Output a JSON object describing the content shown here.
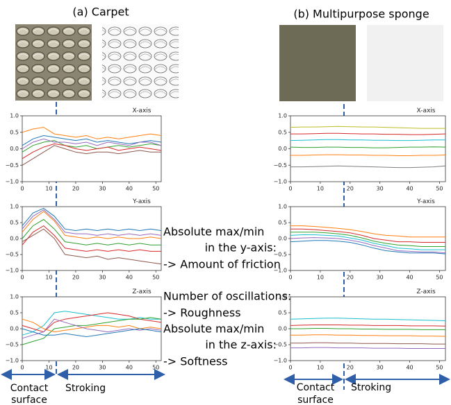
{
  "chart_data": [
    {
      "type": "line",
      "title": "X-axis",
      "x": [
        0,
        4,
        8,
        12,
        16,
        20,
        24,
        28,
        32,
        36,
        40,
        44,
        48,
        52
      ],
      "xlim": [
        0,
        52
      ],
      "xticks": [
        0,
        10,
        20,
        30,
        40,
        50
      ],
      "ylim": [
        -1,
        1
      ],
      "yticks": [
        {
          "value": 1,
          "label": "1.0"
        },
        {
          "value": 0.5,
          "label": "0.5"
        },
        {
          "value": 0,
          "label": "0.0"
        },
        {
          "value": -0.5,
          "label": "−0.5"
        },
        {
          "value": -1,
          "label": "−1.0"
        }
      ],
      "series": [
        {
          "color": "#1f77b4",
          "values": [
            0.1,
            0.3,
            0.4,
            0.35,
            0.3,
            0.25,
            0.3,
            0.2,
            0.25,
            0.2,
            0.15,
            0.2,
            0.25,
            0.2
          ]
        },
        {
          "color": "#ff7f0e",
          "values": [
            0.5,
            0.6,
            0.65,
            0.45,
            0.4,
            0.35,
            0.4,
            0.3,
            0.35,
            0.3,
            0.35,
            0.4,
            0.45,
            0.4
          ]
        },
        {
          "color": "#2ca02c",
          "values": [
            -0.1,
            0.1,
            0.2,
            0.25,
            0.1,
            0.05,
            0.1,
            0.0,
            0.05,
            0.1,
            0.05,
            0.1,
            0.15,
            0.1
          ]
        },
        {
          "color": "#d62728",
          "values": [
            -0.3,
            -0.1,
            0.05,
            0.15,
            0.1,
            0.0,
            -0.05,
            0.0,
            0.05,
            -0.05,
            0.0,
            0.05,
            0.0,
            -0.05
          ]
        },
        {
          "color": "#9467bd",
          "values": [
            0.0,
            0.2,
            0.3,
            0.2,
            0.2,
            0.15,
            0.2,
            0.1,
            0.2,
            0.15,
            0.1,
            0.2,
            0.2,
            0.1
          ]
        },
        {
          "color": "#8c564b",
          "values": [
            -0.5,
            -0.3,
            -0.1,
            0.1,
            0.0,
            -0.1,
            -0.15,
            -0.1,
            -0.1,
            -0.15,
            -0.1,
            -0.05,
            -0.1,
            -0.1
          ]
        }
      ]
    },
    {
      "type": "line",
      "title": "Y-axis",
      "x": [
        0,
        4,
        8,
        12,
        16,
        20,
        24,
        28,
        32,
        36,
        40,
        44,
        48,
        52
      ],
      "xlim": [
        0,
        52
      ],
      "xticks": [
        0,
        10,
        20,
        30,
        40,
        50
      ],
      "ylim": [
        -1,
        1
      ],
      "yticks": [
        {
          "value": 1,
          "label": "1.0"
        },
        {
          "value": 0.5,
          "label": "0.5"
        },
        {
          "value": 0,
          "label": "0.0"
        },
        {
          "value": -0.5,
          "label": "−0.5"
        },
        {
          "value": -1,
          "label": "−1.0"
        }
      ],
      "series": [
        {
          "color": "#1f77b4",
          "values": [
            0.4,
            0.8,
            0.95,
            0.7,
            0.3,
            0.25,
            0.3,
            0.25,
            0.3,
            0.25,
            0.3,
            0.25,
            0.3,
            0.25
          ]
        },
        {
          "color": "#ff7f0e",
          "values": [
            0.2,
            0.6,
            0.85,
            0.55,
            0.1,
            0.05,
            0.0,
            0.05,
            0.0,
            0.05,
            0.0,
            0.0,
            0.05,
            0.0
          ]
        },
        {
          "color": "#2ca02c",
          "values": [
            0.0,
            0.4,
            0.6,
            0.3,
            -0.1,
            -0.15,
            -0.2,
            -0.15,
            -0.2,
            -0.15,
            -0.2,
            -0.15,
            -0.2,
            -0.2
          ]
        },
        {
          "color": "#d62728",
          "values": [
            -0.2,
            0.2,
            0.4,
            0.1,
            -0.3,
            -0.35,
            -0.4,
            -0.35,
            -0.4,
            -0.35,
            -0.4,
            -0.35,
            -0.4,
            -0.4
          ]
        },
        {
          "color": "#9467bd",
          "values": [
            0.3,
            0.7,
            0.9,
            0.6,
            0.2,
            0.15,
            0.15,
            0.1,
            0.15,
            0.1,
            0.15,
            0.1,
            0.15,
            0.1
          ]
        },
        {
          "color": "#8c564b",
          "values": [
            -0.1,
            0.1,
            0.3,
            0.0,
            -0.5,
            -0.55,
            -0.6,
            -0.55,
            -0.65,
            -0.6,
            -0.65,
            -0.7,
            -0.75,
            -0.8
          ]
        }
      ]
    },
    {
      "type": "line",
      "title": "Z-axis",
      "x": [
        0,
        4,
        8,
        12,
        16,
        20,
        24,
        28,
        32,
        36,
        40,
        44,
        48,
        52
      ],
      "xlim": [
        0,
        52
      ],
      "xticks": [
        0,
        10,
        20,
        30,
        40,
        50
      ],
      "ylim": [
        -1,
        1
      ],
      "yticks": [
        {
          "value": 1,
          "label": "1.0"
        },
        {
          "value": 0.5,
          "label": "0.5"
        },
        {
          "value": 0,
          "label": "0.0"
        },
        {
          "value": -0.5,
          "label": "−0.5"
        },
        {
          "value": -1,
          "label": "−1.0"
        }
      ],
      "series": [
        {
          "color": "#17becf",
          "values": [
            -0.2,
            -0.1,
            0.1,
            0.5,
            0.55,
            0.5,
            0.45,
            0.4,
            0.35,
            0.3,
            0.3,
            0.35,
            0.3,
            0.3
          ]
        },
        {
          "color": "#d62728",
          "values": [
            0.1,
            0.0,
            -0.1,
            0.2,
            0.3,
            0.35,
            0.4,
            0.45,
            0.5,
            0.45,
            0.4,
            0.3,
            0.25,
            0.2
          ]
        },
        {
          "color": "#2ca02c",
          "values": [
            -0.5,
            -0.4,
            -0.3,
            0.0,
            0.05,
            0.1,
            0.1,
            0.15,
            0.2,
            0.25,
            0.3,
            0.3,
            0.35,
            0.3
          ]
        },
        {
          "color": "#ff7f0e",
          "values": [
            0.3,
            0.2,
            0.0,
            -0.1,
            -0.05,
            0.0,
            0.05,
            0.1,
            0.1,
            0.05,
            0.1,
            0.0,
            0.05,
            0.0
          ]
        },
        {
          "color": "#9467bd",
          "values": [
            -0.3,
            -0.2,
            -0.1,
            0.3,
            0.2,
            0.1,
            0.0,
            -0.05,
            -0.1,
            -0.05,
            0.0,
            -0.05,
            0.0,
            -0.05
          ]
        },
        {
          "color": "#1f77b4",
          "values": [
            0.0,
            -0.1,
            -0.2,
            -0.2,
            -0.15,
            -0.2,
            -0.25,
            -0.2,
            -0.15,
            -0.1,
            -0.05,
            0.0,
            -0.05,
            -0.1
          ]
        }
      ]
    },
    {
      "type": "line",
      "title": "X-axis",
      "x": [
        0,
        4,
        8,
        12,
        16,
        20,
        24,
        28,
        32,
        36,
        40,
        44,
        48,
        52
      ],
      "xlim": [
        0,
        52
      ],
      "xticks": [
        0,
        10,
        20,
        30,
        40,
        50
      ],
      "ylim": [
        -1,
        1
      ],
      "yticks": [
        {
          "value": 1,
          "label": "1.0"
        },
        {
          "value": 0.5,
          "label": "0.5"
        },
        {
          "value": 0,
          "label": "0.0"
        },
        {
          "value": -0.5,
          "label": "−0.5"
        },
        {
          "value": -1,
          "label": "−1.0"
        }
      ],
      "series": [
        {
          "color": "#bcbd22",
          "values": [
            0.65,
            0.66,
            0.66,
            0.67,
            0.68,
            0.67,
            0.66,
            0.66,
            0.65,
            0.64,
            0.63,
            0.62,
            0.62,
            0.62
          ]
        },
        {
          "color": "#d62728",
          "values": [
            0.45,
            0.45,
            0.46,
            0.47,
            0.47,
            0.46,
            0.45,
            0.45,
            0.44,
            0.44,
            0.43,
            0.43,
            0.44,
            0.45
          ]
        },
        {
          "color": "#17becf",
          "values": [
            0.25,
            0.26,
            0.27,
            0.28,
            0.28,
            0.27,
            0.27,
            0.26,
            0.26,
            0.25,
            0.25,
            0.26,
            0.27,
            0.27
          ]
        },
        {
          "color": "#2ca02c",
          "values": [
            0.05,
            0.04,
            0.04,
            0.05,
            0.05,
            0.04,
            0.04,
            0.03,
            0.03,
            0.04,
            0.05,
            0.05,
            0.06,
            0.05
          ]
        },
        {
          "color": "#ff7f0e",
          "values": [
            -0.2,
            -0.2,
            -0.19,
            -0.18,
            -0.18,
            -0.19,
            -0.19,
            -0.2,
            -0.2,
            -0.21,
            -0.21,
            -0.2,
            -0.2,
            -0.19
          ]
        },
        {
          "color": "#7f7f7f",
          "values": [
            -0.55,
            -0.55,
            -0.54,
            -0.53,
            -0.52,
            -0.53,
            -0.54,
            -0.55,
            -0.56,
            -0.57,
            -0.57,
            -0.56,
            -0.55,
            -0.52
          ]
        }
      ]
    },
    {
      "type": "line",
      "title": "Y-axis",
      "x": [
        0,
        4,
        8,
        12,
        16,
        20,
        24,
        28,
        32,
        36,
        40,
        44,
        48,
        52
      ],
      "xlim": [
        0,
        52
      ],
      "xticks": [
        0,
        10,
        20,
        30,
        40,
        50
      ],
      "ylim": [
        -1,
        1
      ],
      "yticks": [
        {
          "value": 1,
          "label": "1.0"
        },
        {
          "value": 0.5,
          "label": "0.5"
        },
        {
          "value": 0,
          "label": "0.0"
        },
        {
          "value": -0.5,
          "label": "−0.5"
        },
        {
          "value": -1,
          "label": "−1.0"
        }
      ],
      "series": [
        {
          "color": "#ff7f0e",
          "values": [
            0.4,
            0.4,
            0.38,
            0.35,
            0.32,
            0.28,
            0.22,
            0.15,
            0.1,
            0.08,
            0.05,
            0.05,
            0.05,
            0.05
          ]
        },
        {
          "color": "#d62728",
          "values": [
            0.3,
            0.3,
            0.28,
            0.25,
            0.22,
            0.18,
            0.1,
            0.0,
            -0.05,
            -0.1,
            -0.1,
            -0.12,
            -0.12,
            -0.12
          ]
        },
        {
          "color": "#2ca02c",
          "values": [
            0.2,
            0.2,
            0.2,
            0.18,
            0.15,
            0.1,
            0.02,
            -0.08,
            -0.15,
            -0.2,
            -0.22,
            -0.25,
            -0.25,
            -0.25
          ]
        },
        {
          "color": "#17becf",
          "values": [
            0.1,
            0.12,
            0.12,
            0.1,
            0.08,
            0.02,
            -0.05,
            -0.15,
            -0.22,
            -0.3,
            -0.32,
            -0.35,
            -0.35,
            -0.35
          ]
        },
        {
          "color": "#9467bd",
          "values": [
            0.0,
            0.02,
            0.03,
            0.02,
            0.0,
            -0.05,
            -0.12,
            -0.22,
            -0.3,
            -0.38,
            -0.4,
            -0.42,
            -0.42,
            -0.45
          ]
        },
        {
          "color": "#1f77b4",
          "values": [
            -0.1,
            -0.08,
            -0.06,
            -0.06,
            -0.08,
            -0.12,
            -0.2,
            -0.3,
            -0.38,
            -0.42,
            -0.45,
            -0.45,
            -0.45,
            -0.48
          ]
        }
      ]
    },
    {
      "type": "line",
      "title": "Z-axis",
      "x": [
        0,
        4,
        8,
        12,
        16,
        20,
        24,
        28,
        32,
        36,
        40,
        44,
        48,
        52
      ],
      "xlim": [
        0,
        52
      ],
      "xticks": [
        0,
        10,
        20,
        30,
        40,
        50
      ],
      "ylim": [
        -1,
        1
      ],
      "yticks": [
        {
          "value": 1,
          "label": "1.0"
        },
        {
          "value": 0.5,
          "label": "0.5"
        },
        {
          "value": 0,
          "label": "0.0"
        },
        {
          "value": -0.5,
          "label": "−0.5"
        },
        {
          "value": -1,
          "label": "−1.0"
        }
      ],
      "series": [
        {
          "color": "#17becf",
          "values": [
            0.3,
            0.31,
            0.32,
            0.33,
            0.33,
            0.32,
            0.31,
            0.3,
            0.3,
            0.29,
            0.28,
            0.27,
            0.26,
            0.25
          ]
        },
        {
          "color": "#d62728",
          "values": [
            0.1,
            0.11,
            0.12,
            0.12,
            0.12,
            0.11,
            0.11,
            0.1,
            0.1,
            0.1,
            0.09,
            0.09,
            0.09,
            0.08
          ]
        },
        {
          "color": "#2ca02c",
          "values": [
            0.0,
            0.0,
            0.01,
            0.01,
            0.0,
            0.0,
            -0.01,
            -0.01,
            -0.02,
            -0.02,
            -0.02,
            -0.03,
            -0.03,
            -0.03
          ]
        },
        {
          "color": "#ff7f0e",
          "values": [
            -0.2,
            -0.2,
            -0.19,
            -0.19,
            -0.2,
            -0.2,
            -0.21,
            -0.21,
            -0.22,
            -0.22,
            -0.22,
            -0.23,
            -0.23,
            -0.24
          ]
        },
        {
          "color": "#8c564b",
          "values": [
            -0.45,
            -0.45,
            -0.44,
            -0.44,
            -0.45,
            -0.45,
            -0.46,
            -0.46,
            -0.46,
            -0.47,
            -0.47,
            -0.47,
            -0.48,
            -0.48
          ]
        },
        {
          "color": "#9467bd",
          "values": [
            -0.6,
            -0.6,
            -0.59,
            -0.59,
            -0.6,
            -0.6,
            -0.6,
            -0.61,
            -0.61,
            -0.61,
            -0.62,
            -0.62,
            -0.62,
            -0.62
          ]
        }
      ]
    }
  ],
  "figure": {
    "panel_titles": [
      "(a) Carpet",
      "(b) Multipurpose sponge"
    ],
    "annotations": [
      "Absolute max/min",
      "in the y-axis:",
      "-> Amount of friction",
      "Number of oscillations:",
      "-> Roughness",
      "Absolute max/min",
      "in the z-axis:",
      "-> Softness"
    ],
    "left_labels": [
      "Contact",
      "surface",
      "Stroking"
    ],
    "right_labels": [
      "Contact",
      "surface",
      "Stroking"
    ]
  }
}
